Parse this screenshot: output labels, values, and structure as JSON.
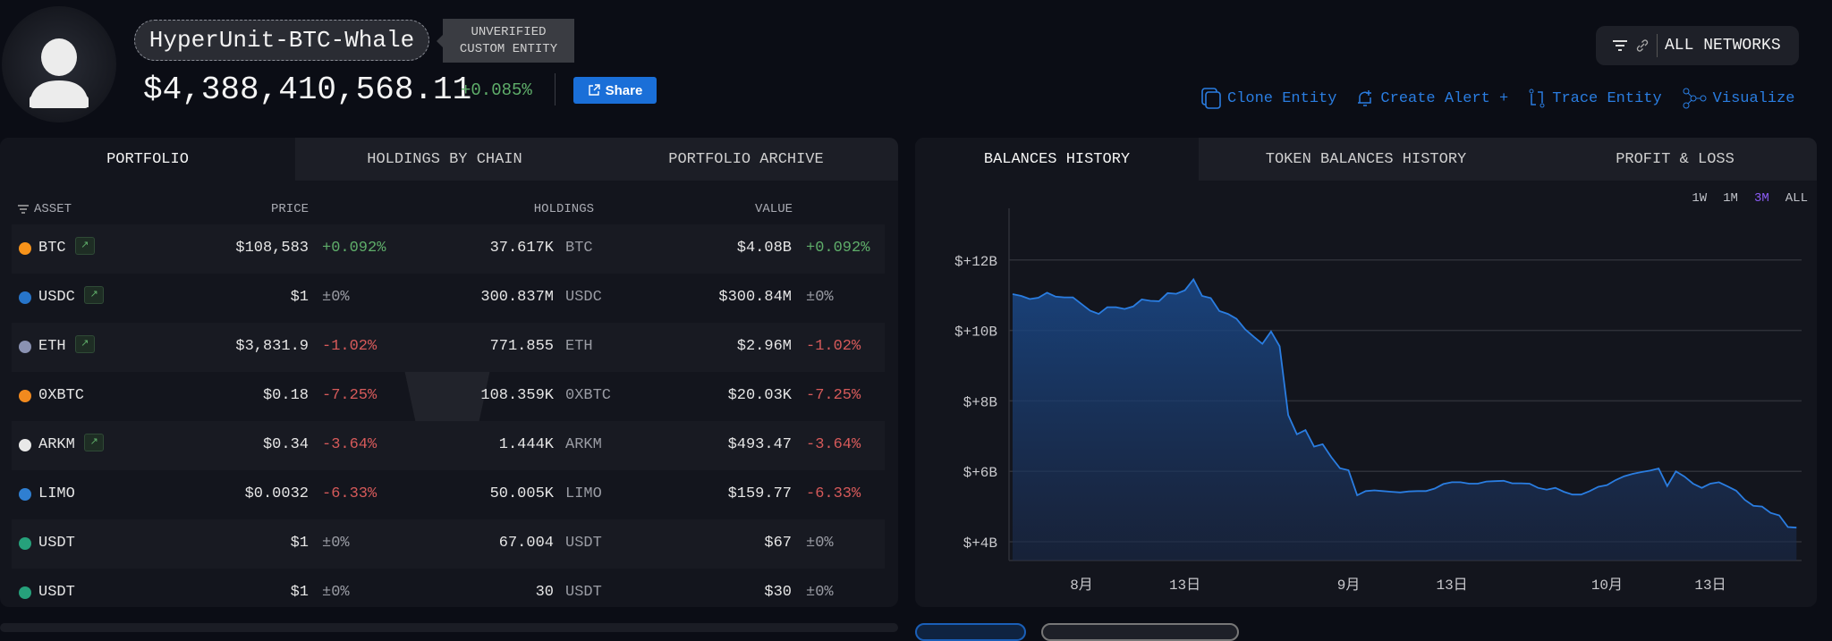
{
  "entity": {
    "name": "HyperUnit-BTC-Whale",
    "badge_line1": "UNVERIFIED",
    "badge_line2": "CUSTOM ENTITY",
    "total_value": "$4,388,410,568.11",
    "total_change": "+0.085%",
    "share_label": "Share"
  },
  "network_filter": {
    "label": "ALL NETWORKS"
  },
  "actions": [
    {
      "label": "Clone Entity",
      "icon": "clone-icon"
    },
    {
      "label": "Create Alert +",
      "icon": "bell-plus-icon"
    },
    {
      "label": "Trace Entity",
      "icon": "trace-icon"
    },
    {
      "label": "Visualize",
      "icon": "graph-icon"
    }
  ],
  "left_tabs": [
    "PORTFOLIO",
    "HOLDINGS BY CHAIN",
    "PORTFOLIO ARCHIVE"
  ],
  "table": {
    "columns": [
      "ASSET",
      "PRICE",
      "HOLDINGS",
      "VALUE"
    ],
    "rows": [
      {
        "asset": "BTC",
        "icon_color": "#f7931a",
        "trend": true,
        "price": "$108,583",
        "price_change": "+0.092%",
        "dir": "up",
        "holdings": "37.617K",
        "symbol": "BTC",
        "value": "$4.08B",
        "value_change": "+0.092%"
      },
      {
        "asset": "USDC",
        "icon_color": "#2775ca",
        "trend": true,
        "price": "$1",
        "price_change": "±0%",
        "dir": "flat",
        "holdings": "300.837M",
        "symbol": "USDC",
        "value": "$300.84M",
        "value_change": "±0%"
      },
      {
        "asset": "ETH",
        "icon_color": "#8a92b2",
        "trend": true,
        "price": "$3,831.9",
        "price_change": "-1.02%",
        "dir": "down",
        "holdings": "771.855",
        "symbol": "ETH",
        "value": "$2.96M",
        "value_change": "-1.02%"
      },
      {
        "asset": "0XBTC",
        "icon_color": "#f28a1e",
        "trend": false,
        "price": "$0.18",
        "price_change": "-7.25%",
        "dir": "down",
        "holdings": "108.359K",
        "symbol": "0XBTC",
        "value": "$20.03K",
        "value_change": "-7.25%"
      },
      {
        "asset": "ARKM",
        "icon_color": "#e8e8e8",
        "trend": true,
        "price": "$0.34",
        "price_change": "-3.64%",
        "dir": "down",
        "holdings": "1.444K",
        "symbol": "ARKM",
        "value": "$493.47",
        "value_change": "-3.64%"
      },
      {
        "asset": "LIMO",
        "icon_color": "#2f7fd1",
        "trend": false,
        "price": "$0.0032",
        "price_change": "-6.33%",
        "dir": "down",
        "holdings": "50.005K",
        "symbol": "LIMO",
        "value": "$159.77",
        "value_change": "-6.33%"
      },
      {
        "asset": "USDT",
        "icon_color": "#26a17b",
        "trend": false,
        "price": "$1",
        "price_change": "±0%",
        "dir": "flat",
        "holdings": "67.004",
        "symbol": "USDT",
        "value": "$67",
        "value_change": "±0%"
      },
      {
        "asset": "USDT",
        "icon_color": "#26a17b",
        "trend": false,
        "price": "$1",
        "price_change": "±0%",
        "dir": "flat",
        "holdings": "30",
        "symbol": "USDT",
        "value": "$30",
        "value_change": "±0%"
      }
    ]
  },
  "right_tabs": [
    "BALANCES HISTORY",
    "TOKEN BALANCES HISTORY",
    "PROFIT & LOSS"
  ],
  "ranges": [
    {
      "label": "1W",
      "active": false
    },
    {
      "label": "1M",
      "active": false
    },
    {
      "label": "3M",
      "active": true
    },
    {
      "label": "ALL",
      "active": false
    }
  ],
  "colors": {
    "up": "#5fae6a",
    "down": "#d65a5a",
    "accent": "#2a7de1",
    "active_range": "#8b5cf6",
    "line": "#2a7de1"
  },
  "chart_data": {
    "type": "area",
    "ylim": [
      3.47,
      13.5
    ],
    "y_unit": "B",
    "y_ticks": [
      {
        "value": 12,
        "label": "$+12B"
      },
      {
        "value": 10,
        "label": "$+10B"
      },
      {
        "value": 8,
        "label": "$+8B"
      },
      {
        "value": 6,
        "label": "$+6B"
      },
      {
        "value": 4,
        "label": "$+4B"
      }
    ],
    "x_ticks": [
      {
        "at": "08-01",
        "label": "8月"
      },
      {
        "at": "08-13",
        "label": "13日"
      },
      {
        "at": "09-01",
        "label": "9月"
      },
      {
        "at": "09-13",
        "label": "13日"
      },
      {
        "at": "10-01",
        "label": "10月"
      },
      {
        "at": "10-13",
        "label": "13日"
      }
    ],
    "grid": true,
    "start": "07-24",
    "values": [
      11.03,
      10.98,
      10.89,
      10.93,
      11.07,
      10.96,
      10.94,
      10.94,
      10.75,
      10.56,
      10.47,
      10.66,
      10.66,
      10.61,
      10.68,
      10.88,
      10.84,
      10.83,
      11.06,
      11.04,
      11.14,
      11.45,
      10.98,
      10.92,
      10.55,
      10.47,
      10.33,
      10.03,
      9.82,
      9.62,
      9.97,
      9.55,
      7.6,
      7.05,
      7.17,
      6.7,
      6.77,
      6.4,
      6.09,
      6.03,
      5.32,
      5.44,
      5.46,
      5.44,
      5.42,
      5.4,
      5.43,
      5.44,
      5.44,
      5.51,
      5.64,
      5.69,
      5.69,
      5.65,
      5.65,
      5.71,
      5.72,
      5.73,
      5.66,
      5.66,
      5.65,
      5.53,
      5.48,
      5.53,
      5.42,
      5.34,
      5.34,
      5.44,
      5.56,
      5.61,
      5.75,
      5.86,
      5.93,
      5.98,
      6.02,
      6.08,
      5.58,
      6.0,
      5.85,
      5.65,
      5.53,
      5.65,
      5.69,
      5.57,
      5.45,
      5.19,
      5.02,
      5.0,
      4.82,
      4.75,
      4.42,
      4.4
    ]
  }
}
